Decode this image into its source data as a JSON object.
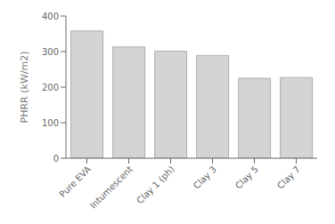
{
  "chart_data": {
    "type": "bar",
    "categories": [
      "Pure EVA",
      "Intumescent",
      "Clay 1 (ph)",
      "Clay 3",
      "Clay 5",
      "Clay 7"
    ],
    "values": [
      358,
      313,
      301,
      289,
      225,
      227
    ],
    "color": "#d4d4d4",
    "ylabel": "PHRR (kW/m2)",
    "ylim": [
      0,
      400
    ],
    "yticks": [
      0,
      100,
      200,
      300,
      400
    ],
    "grid": false
  }
}
